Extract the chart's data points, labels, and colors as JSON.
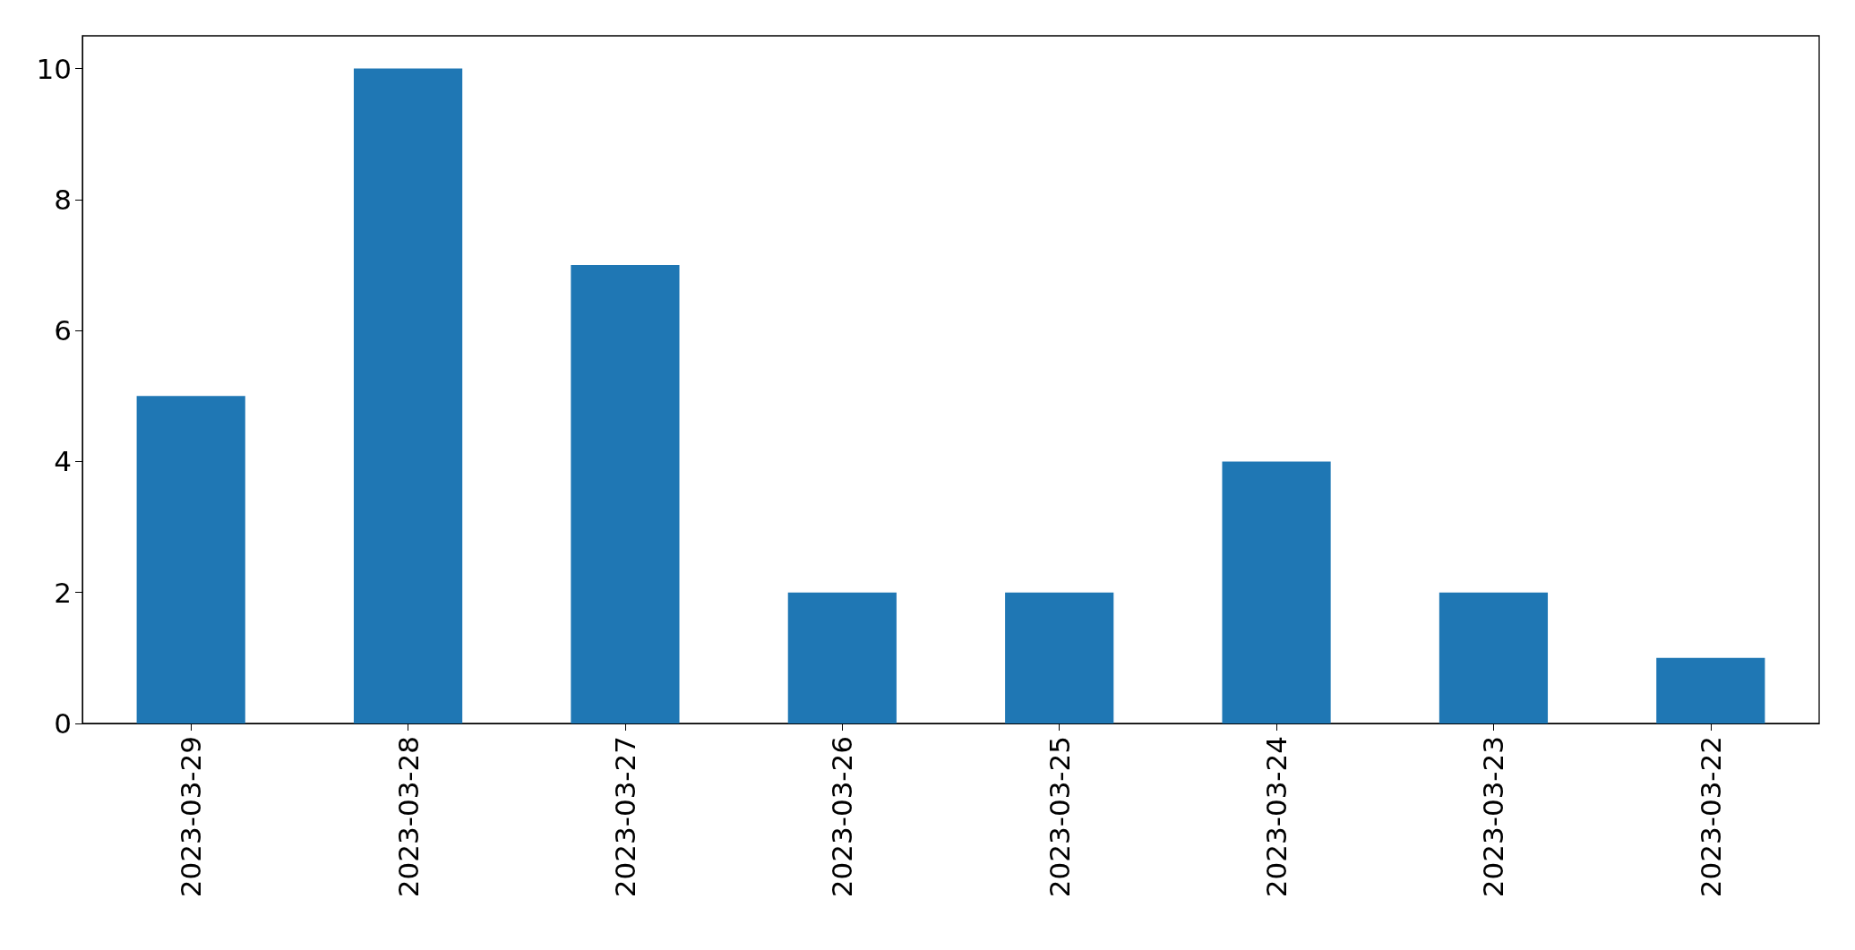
{
  "chart_data": {
    "type": "bar",
    "categories": [
      "2023-03-29",
      "2023-03-28",
      "2023-03-27",
      "2023-03-26",
      "2023-03-25",
      "2023-03-24",
      "2023-03-23",
      "2023-03-22"
    ],
    "values": [
      5,
      10,
      7,
      2,
      2,
      4,
      2,
      1
    ],
    "color": "#1f77b4",
    "ylim": [
      0,
      10.5
    ],
    "yticks": [
      0,
      2,
      4,
      6,
      8,
      10
    ]
  }
}
